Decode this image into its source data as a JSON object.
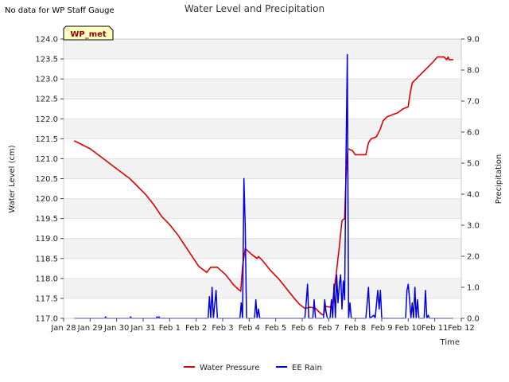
{
  "page": {
    "note": "No data for WP Staff Gauge"
  },
  "chart_data": {
    "type": "line",
    "title": "Water Level and Precipitation",
    "xlabel": "Time",
    "ylabel_left": "Water Level (cm)",
    "ylabel_right": "Precipitation",
    "station_badge": "WP_met",
    "x_ticks": [
      "Jan 28",
      "Jan 29",
      "Jan 30",
      "Jan 31",
      "Feb 1",
      "Feb 2",
      "Feb 3",
      "Feb 4",
      "Feb 5",
      "Feb 6",
      "Feb 7",
      "Feb 8",
      "Feb 9",
      "Feb 10",
      "Feb 11",
      "Feb 12"
    ],
    "x_range_days": [
      0,
      15
    ],
    "y_left": {
      "range": [
        117.0,
        124.0
      ],
      "ticks": [
        "117.0",
        "117.5",
        "118.0",
        "118.5",
        "119.0",
        "119.5",
        "120.0",
        "120.5",
        "121.0",
        "121.5",
        "122.0",
        "122.5",
        "123.0",
        "123.5",
        "124.0"
      ]
    },
    "y_right": {
      "range": [
        0.0,
        9.0
      ],
      "ticks": [
        "0.0",
        "1.0",
        "2.0",
        "3.0",
        "4.0",
        "5.0",
        "6.0",
        "7.0",
        "8.0",
        "9.0"
      ]
    },
    "grid": "horizontal bands",
    "legend": {
      "placement": "bottom-center"
    },
    "series": [
      {
        "name": "Water Pressure",
        "color": "#dd0000",
        "axis": "left",
        "points": [
          [
            0.4,
            121.45
          ],
          [
            0.7,
            121.35
          ],
          [
            1.0,
            121.25
          ],
          [
            1.3,
            121.1
          ],
          [
            1.6,
            120.95
          ],
          [
            1.9,
            120.8
          ],
          [
            2.2,
            120.65
          ],
          [
            2.5,
            120.5
          ],
          [
            2.8,
            120.3
          ],
          [
            3.1,
            120.1
          ],
          [
            3.4,
            119.85
          ],
          [
            3.7,
            119.55
          ],
          [
            4.0,
            119.35
          ],
          [
            4.3,
            119.1
          ],
          [
            4.6,
            118.8
          ],
          [
            4.9,
            118.5
          ],
          [
            5.1,
            118.3
          ],
          [
            5.4,
            118.15
          ],
          [
            5.55,
            118.28
          ],
          [
            5.8,
            118.28
          ],
          [
            6.1,
            118.1
          ],
          [
            6.4,
            117.85
          ],
          [
            6.6,
            117.72
          ],
          [
            6.68,
            117.68
          ],
          [
            6.75,
            118.3
          ],
          [
            6.85,
            118.75
          ],
          [
            7.1,
            118.6
          ],
          [
            7.3,
            118.5
          ],
          [
            7.35,
            118.55
          ],
          [
            7.5,
            118.45
          ],
          [
            7.8,
            118.2
          ],
          [
            8.1,
            118.0
          ],
          [
            8.4,
            117.75
          ],
          [
            8.7,
            117.5
          ],
          [
            8.9,
            117.35
          ],
          [
            9.1,
            117.25
          ],
          [
            9.3,
            117.28
          ],
          [
            9.5,
            117.25
          ],
          [
            9.7,
            117.12
          ],
          [
            9.8,
            117.08
          ],
          [
            9.85,
            117.2
          ],
          [
            9.9,
            117.3
          ],
          [
            10.05,
            117.28
          ],
          [
            10.15,
            117.4
          ],
          [
            10.3,
            118.2
          ],
          [
            10.4,
            118.8
          ],
          [
            10.5,
            119.45
          ],
          [
            10.6,
            119.5
          ],
          [
            10.65,
            120.5
          ],
          [
            10.72,
            121.25
          ],
          [
            10.9,
            121.2
          ],
          [
            11.0,
            121.1
          ],
          [
            11.4,
            121.1
          ],
          [
            11.5,
            121.4
          ],
          [
            11.6,
            121.5
          ],
          [
            11.8,
            121.55
          ],
          [
            11.95,
            121.75
          ],
          [
            12.05,
            121.95
          ],
          [
            12.2,
            122.05
          ],
          [
            12.4,
            122.1
          ],
          [
            12.6,
            122.15
          ],
          [
            12.8,
            122.25
          ],
          [
            13.0,
            122.3
          ],
          [
            13.05,
            122.55
          ],
          [
            13.15,
            122.9
          ],
          [
            13.3,
            123.0
          ],
          [
            13.6,
            123.2
          ],
          [
            13.9,
            123.4
          ],
          [
            14.1,
            123.55
          ],
          [
            14.35,
            123.55
          ],
          [
            14.45,
            123.48
          ],
          [
            14.5,
            123.55
          ],
          [
            14.55,
            123.48
          ],
          [
            14.7,
            123.48
          ]
        ]
      },
      {
        "name": "EE Rain",
        "color": "#0000dd",
        "axis": "right",
        "points": [
          [
            0.4,
            0
          ],
          [
            1.55,
            0
          ],
          [
            1.58,
            0.05
          ],
          [
            1.61,
            0
          ],
          [
            2.5,
            0
          ],
          [
            2.53,
            0.05
          ],
          [
            2.56,
            0
          ],
          [
            3.5,
            0
          ],
          [
            3.52,
            0.05
          ],
          [
            3.55,
            0
          ],
          [
            3.6,
            0.05
          ],
          [
            3.63,
            0
          ],
          [
            5.45,
            0
          ],
          [
            5.5,
            0.7
          ],
          [
            5.55,
            0
          ],
          [
            5.6,
            1.0
          ],
          [
            5.65,
            0
          ],
          [
            5.75,
            0.9
          ],
          [
            5.8,
            0
          ],
          [
            6.65,
            0
          ],
          [
            6.7,
            0.5
          ],
          [
            6.75,
            0
          ],
          [
            6.8,
            4.5
          ],
          [
            6.85,
            3.0
          ],
          [
            6.9,
            0
          ],
          [
            7.2,
            0
          ],
          [
            7.25,
            0.6
          ],
          [
            7.3,
            0
          ],
          [
            7.35,
            0.3
          ],
          [
            7.4,
            0
          ],
          [
            9.1,
            0
          ],
          [
            9.15,
            0.5
          ],
          [
            9.2,
            1.1
          ],
          [
            9.25,
            0
          ],
          [
            9.4,
            0
          ],
          [
            9.45,
            0.6
          ],
          [
            9.5,
            0
          ],
          [
            9.8,
            0
          ],
          [
            9.85,
            0.6
          ],
          [
            9.9,
            0.2
          ],
          [
            9.95,
            0
          ],
          [
            10.05,
            0
          ],
          [
            10.1,
            0.6
          ],
          [
            10.15,
            0
          ],
          [
            10.2,
            1.1
          ],
          [
            10.25,
            0
          ],
          [
            10.3,
            1.4
          ],
          [
            10.35,
            0.5
          ],
          [
            10.4,
            1.1
          ],
          [
            10.45,
            1.4
          ],
          [
            10.5,
            0.3
          ],
          [
            10.55,
            1.2
          ],
          [
            10.6,
            0.6
          ],
          [
            10.65,
            5.0
          ],
          [
            10.7,
            8.5
          ],
          [
            10.75,
            0
          ],
          [
            10.8,
            0.5
          ],
          [
            10.85,
            0
          ],
          [
            11.4,
            0
          ],
          [
            11.45,
            0.5
          ],
          [
            11.5,
            1.0
          ],
          [
            11.55,
            0
          ],
          [
            11.7,
            0.1
          ],
          [
            11.75,
            0
          ],
          [
            11.85,
            0.9
          ],
          [
            11.9,
            0.3
          ],
          [
            11.95,
            0.9
          ],
          [
            12.0,
            0
          ],
          [
            12.9,
            0
          ],
          [
            12.95,
            0.9
          ],
          [
            13.0,
            1.1
          ],
          [
            13.05,
            0.6
          ],
          [
            13.1,
            0
          ],
          [
            13.15,
            0.5
          ],
          [
            13.2,
            0
          ],
          [
            13.25,
            1.0
          ],
          [
            13.3,
            0
          ],
          [
            13.35,
            0.6
          ],
          [
            13.4,
            0
          ],
          [
            13.6,
            0
          ],
          [
            13.65,
            0.9
          ],
          [
            13.7,
            0
          ],
          [
            13.75,
            0.1
          ],
          [
            13.8,
            0
          ],
          [
            14.7,
            0
          ]
        ]
      }
    ]
  }
}
